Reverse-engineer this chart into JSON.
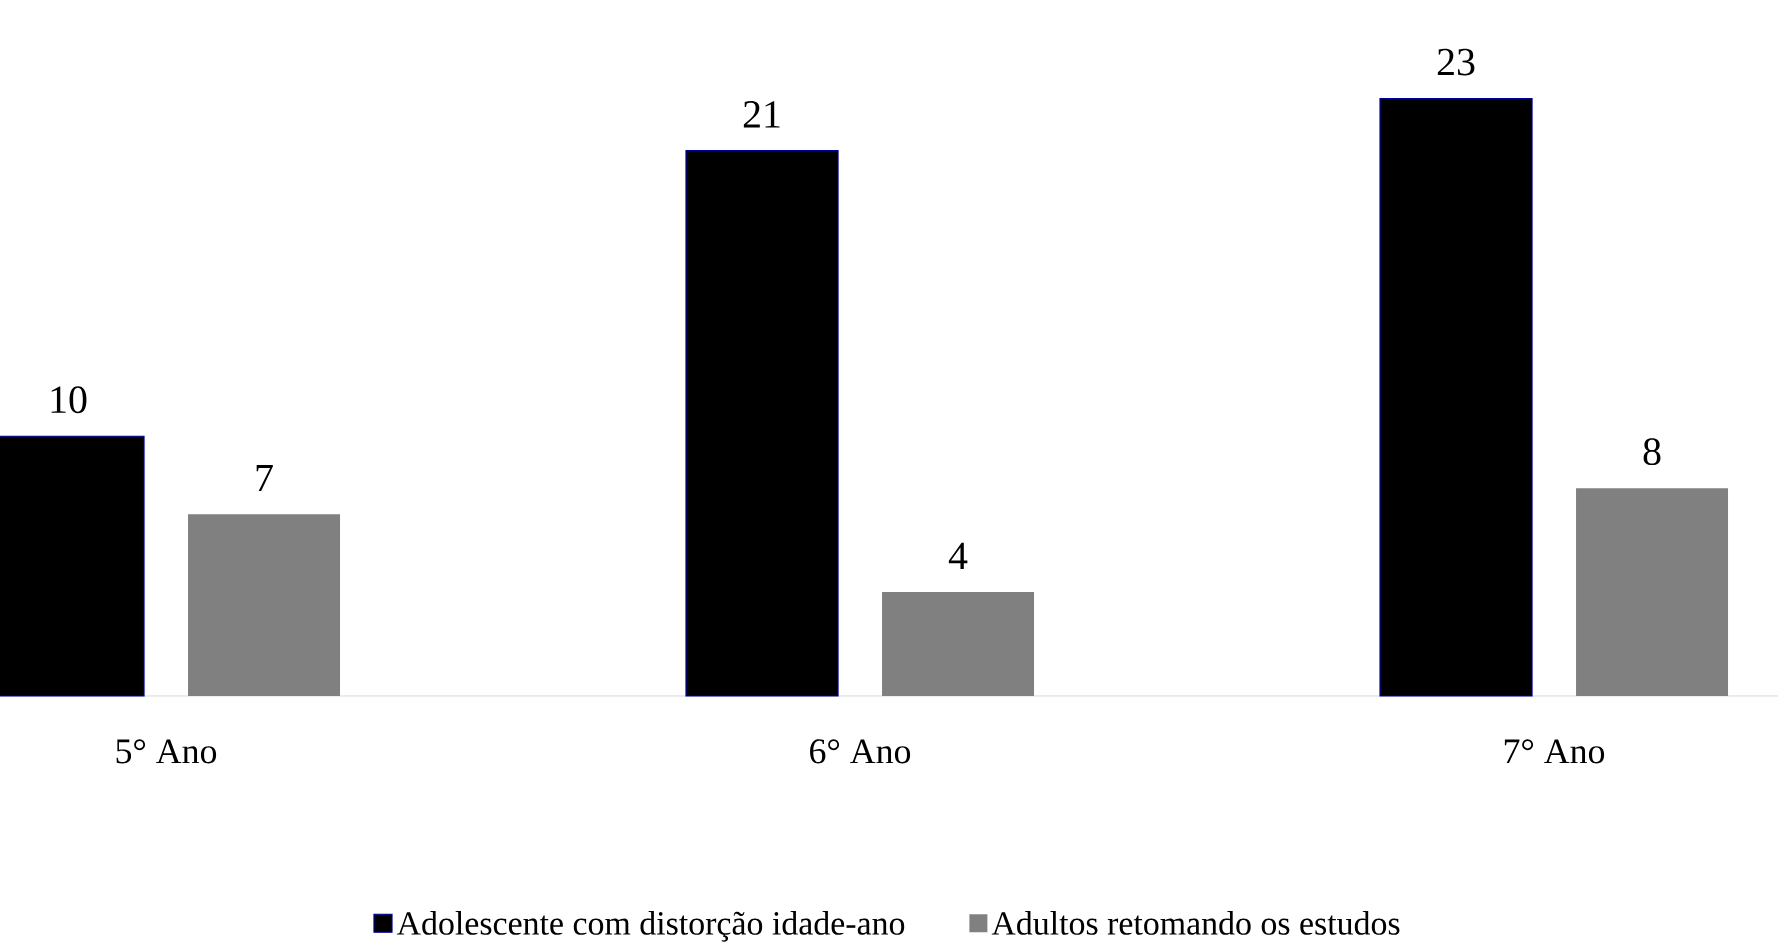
{
  "chart_data": {
    "type": "bar",
    "categories": [
      "5° Ano",
      "6° Ano",
      "7° Ano"
    ],
    "series": [
      {
        "name": "Adolescente com distorção idade-ano",
        "color": "#000000",
        "values": [
          10,
          21,
          23
        ]
      },
      {
        "name": "Adultos retomando os estudos",
        "color": "#808080",
        "values": [
          7,
          4,
          8
        ]
      }
    ],
    "tick_labels": "x",
    "data_labels": true,
    "legend": "bottom",
    "grid": false
  }
}
